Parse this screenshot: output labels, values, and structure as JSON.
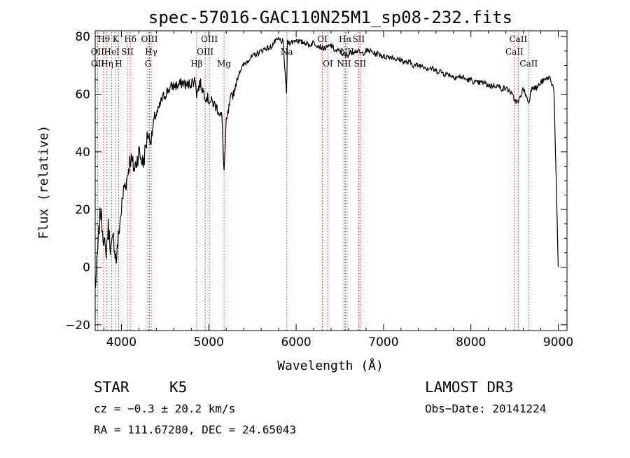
{
  "chart_data": {
    "type": "line",
    "title": "spec-57016-GAC110N25M1_sp08-232.fits",
    "xlabel": "Wavelength (Å)",
    "ylabel": "Flux (relative)",
    "xlim": [
      3700,
      9100
    ],
    "ylim": [
      -22,
      82
    ],
    "xticks": [
      4000,
      5000,
      6000,
      7000,
      8000,
      9000
    ],
    "xtick_labels": [
      "4000",
      "5000",
      "6000",
      "7000",
      "8000",
      "9000"
    ],
    "yticks": [
      -20,
      0,
      20,
      40,
      60,
      80
    ],
    "ytick_labels": [
      "−20",
      "0",
      "20",
      "40",
      "60",
      "80"
    ],
    "series": [
      {
        "name": "flux",
        "x": [
          3700,
          3730,
          3760,
          3790,
          3820,
          3850,
          3880,
          3910,
          3940,
          3970,
          4000,
          4030,
          4060,
          4100,
          4150,
          4200,
          4250,
          4300,
          4340,
          4380,
          4420,
          4460,
          4500,
          4550,
          4600,
          4650,
          4700,
          4750,
          4800,
          4850,
          4861,
          4900,
          4950,
          5000,
          5050,
          5100,
          5150,
          5175,
          5200,
          5250,
          5300,
          5350,
          5400,
          5450,
          5500,
          5550,
          5600,
          5650,
          5700,
          5750,
          5800,
          5850,
          5890,
          5900,
          5950,
          6000,
          6050,
          6100,
          6150,
          6200,
          6250,
          6300,
          6350,
          6400,
          6450,
          6500,
          6563,
          6600,
          6650,
          6700,
          6750,
          6800,
          6850,
          6900,
          6950,
          7000,
          7050,
          7100,
          7150,
          7200,
          7250,
          7300,
          7350,
          7400,
          7450,
          7500,
          7550,
          7600,
          7650,
          7700,
          7750,
          7800,
          7850,
          7900,
          7950,
          8000,
          8050,
          8100,
          8150,
          8200,
          8250,
          8300,
          8350,
          8400,
          8450,
          8500,
          8542,
          8600,
          8662,
          8700,
          8750,
          8800,
          8850,
          8900,
          8950,
          9000
        ],
        "values": [
          -8,
          6,
          20,
          12,
          4,
          14,
          6,
          10,
          2,
          12,
          20,
          28,
          30,
          38,
          34,
          40,
          36,
          46,
          44,
          52,
          54,
          58,
          60,
          62,
          63,
          63,
          64,
          63,
          64,
          65,
          60,
          64,
          60,
          58,
          57,
          55,
          52,
          33,
          50,
          58,
          62,
          68,
          70,
          72,
          73,
          74,
          75,
          76,
          76,
          78,
          79,
          78,
          60,
          78,
          78,
          79,
          78,
          78,
          77,
          78,
          77,
          76,
          76,
          77,
          75,
          75,
          73,
          74,
          75,
          75,
          74,
          75,
          75,
          74,
          74,
          73,
          73,
          73,
          72,
          72,
          71,
          71,
          70,
          70,
          70,
          69,
          69,
          68,
          68,
          67,
          67,
          66,
          66,
          66,
          65,
          65,
          64,
          64,
          64,
          63,
          63,
          63,
          62,
          62,
          61,
          58,
          57,
          62,
          57,
          63,
          62,
          64,
          65,
          66,
          62,
          0
        ]
      }
    ],
    "line_markers": [
      {
        "label": "Hθ",
        "wavelength": 3798,
        "row": 1
      },
      {
        "label": "OII",
        "wavelength": 3727,
        "row": 2
      },
      {
        "label": "OII",
        "wavelength": 3729,
        "row": 3
      },
      {
        "label": "Hη",
        "wavelength": 3835,
        "row": 3
      },
      {
        "label": "HeI",
        "wavelength": 3889,
        "row": 2
      },
      {
        "label": "K",
        "wavelength": 3934,
        "row": 1
      },
      {
        "label": "H",
        "wavelength": 3969,
        "row": 3
      },
      {
        "label": "SII",
        "wavelength": 4069,
        "row": 2
      },
      {
        "label": "Hδ",
        "wavelength": 4102,
        "row": 1
      },
      {
        "label": "OIII",
        "wavelength": 4321,
        "row": 1
      },
      {
        "label": "Hγ",
        "wavelength": 4341,
        "row": 2
      },
      {
        "label": "G",
        "wavelength": 4305,
        "row": 3
      },
      {
        "label": "Hβ",
        "wavelength": 4861,
        "row": 3
      },
      {
        "label": "OIII",
        "wavelength": 4959,
        "row": 2
      },
      {
        "label": "OIII",
        "wavelength": 5007,
        "row": 1
      },
      {
        "label": "Mg",
        "wavelength": 5175,
        "row": 3
      },
      {
        "label": "Na",
        "wavelength": 5893,
        "row": 2
      },
      {
        "label": "OI",
        "wavelength": 6300,
        "row": 1
      },
      {
        "label": "OI",
        "wavelength": 6363,
        "row": 3
      },
      {
        "label": "Hα",
        "wavelength": 6563,
        "row": 1
      },
      {
        "label": "NII",
        "wavelength": 6548,
        "row": 3
      },
      {
        "label": "NII",
        "wavelength": 6583,
        "row": 2
      },
      {
        "label": "SII",
        "wavelength": 6716,
        "row": 1
      },
      {
        "label": "SII",
        "wavelength": 6731,
        "row": 3
      },
      {
        "label": "CaII",
        "wavelength": 8498,
        "row": 2
      },
      {
        "label": "CaII",
        "wavelength": 8542,
        "row": 1
      },
      {
        "label": "CaII",
        "wavelength": 8662,
        "row": 3
      }
    ]
  },
  "info": {
    "class_label": "STAR",
    "subclass": "K5",
    "survey": "LAMOST DR3",
    "redshift_line": "cz = −0.3 ± 20.2 km/s",
    "obs_date": "Obs−Date: 20141224",
    "coords": "RA = 111.67280, DEC =  24.65043"
  }
}
